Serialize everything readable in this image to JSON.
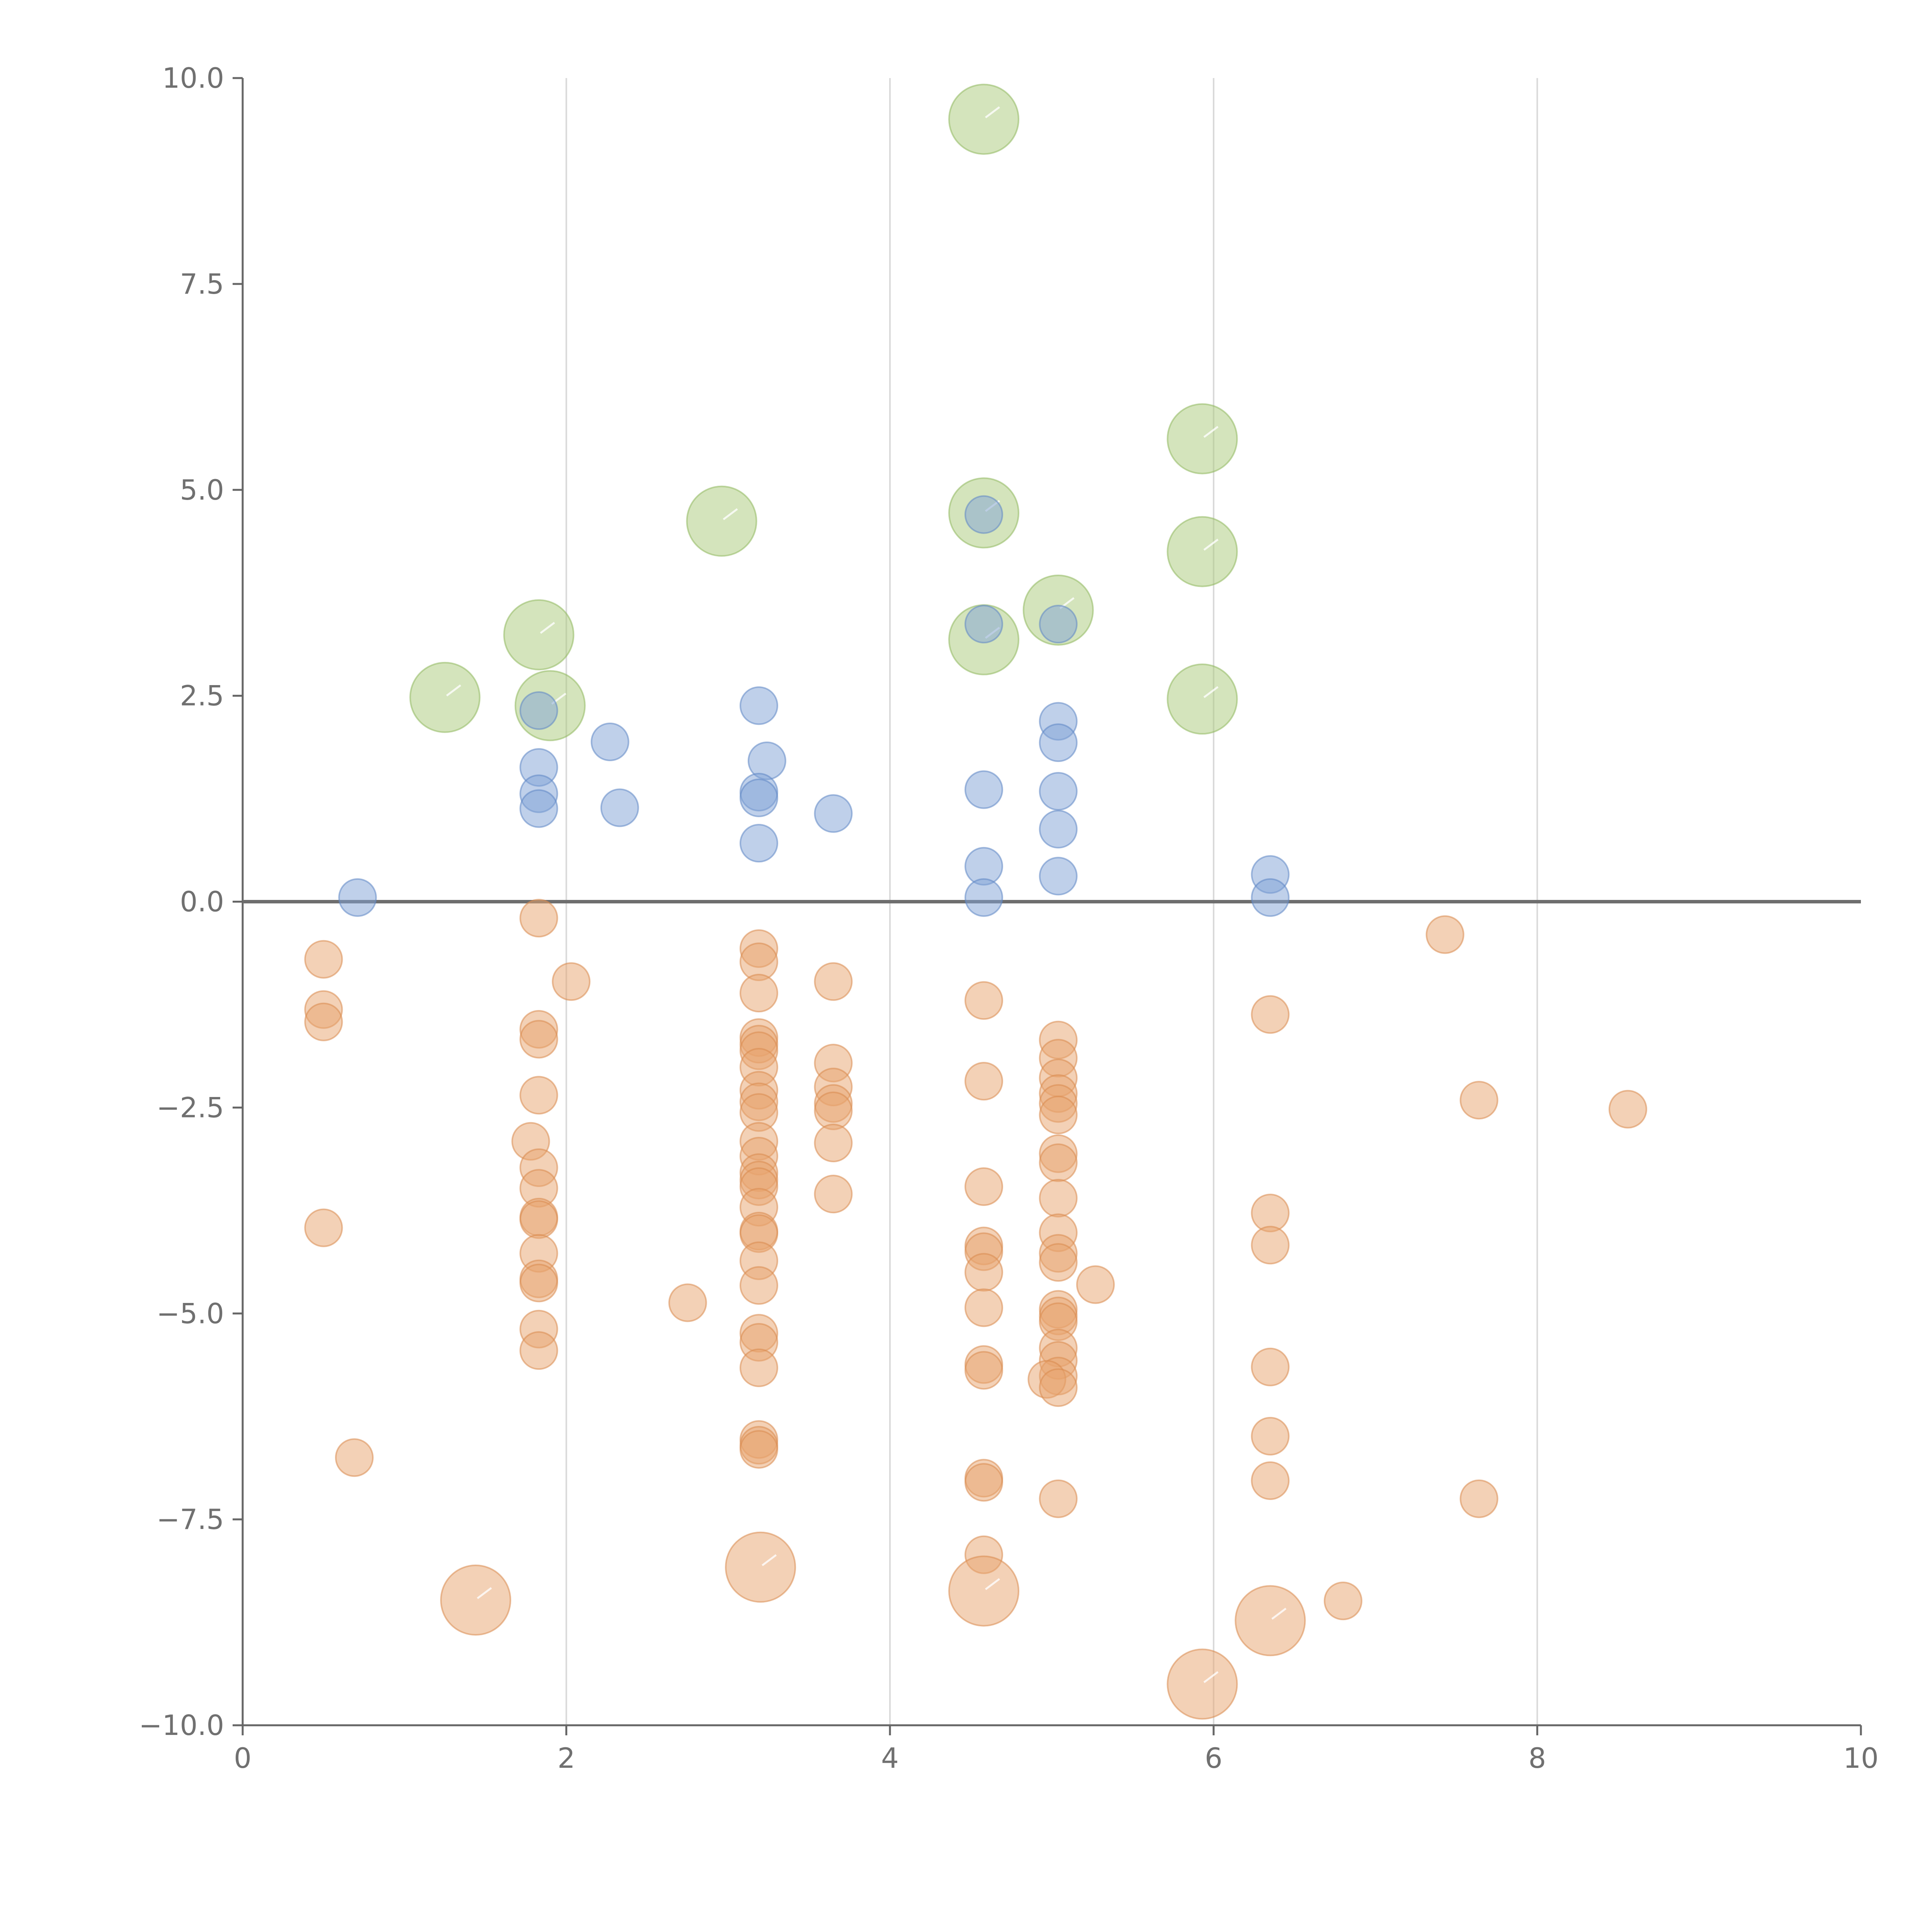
{
  "chart_data": {
    "type": "scatter",
    "title": "",
    "xlabel": "",
    "ylabel": "",
    "xlim": [
      0,
      10
    ],
    "ylim": [
      -10,
      10
    ],
    "grid": "vertical",
    "zero_line": true,
    "x_ticks": [
      "0",
      "2",
      "4",
      "6",
      "8",
      "10"
    ],
    "x_tick_values": [
      0,
      2,
      4,
      6,
      8,
      10
    ],
    "y_ticks": [
      "10.0",
      "7.5",
      "5.0",
      "2.5",
      "0.0",
      "−2.5",
      "−5.0",
      "−7.5",
      "−10.0"
    ],
    "y_tick_values": [
      10,
      7.5,
      5,
      2.5,
      0,
      -2.5,
      -5,
      -7.5,
      -10
    ],
    "series": [
      {
        "name": "green",
        "color": "#a9c97a",
        "stroke": "#8fb85e",
        "size": "large",
        "points": [
          [
            1.25,
            2.48
          ],
          [
            1.83,
            3.24
          ],
          [
            1.9,
            2.38
          ],
          [
            2.96,
            4.62
          ],
          [
            4.58,
            9.5
          ],
          [
            4.58,
            4.72
          ],
          [
            4.58,
            3.18
          ],
          [
            5.04,
            3.54
          ],
          [
            5.93,
            5.62
          ],
          [
            5.93,
            4.25
          ],
          [
            5.93,
            2.46
          ]
        ]
      },
      {
        "name": "blue",
        "color": "#7fa2d6",
        "stroke": "#5f87c4",
        "size": "small",
        "points": [
          [
            0.71,
            0.05
          ],
          [
            1.83,
            2.32
          ],
          [
            1.83,
            1.63
          ],
          [
            1.83,
            1.31
          ],
          [
            1.83,
            1.13
          ],
          [
            2.27,
            1.94
          ],
          [
            2.33,
            1.14
          ],
          [
            3.19,
            2.38
          ],
          [
            3.24,
            1.71
          ],
          [
            3.19,
            1.33
          ],
          [
            3.19,
            1.26
          ],
          [
            3.19,
            0.71
          ],
          [
            3.65,
            1.07
          ],
          [
            4.58,
            4.7
          ],
          [
            4.58,
            3.37
          ],
          [
            4.58,
            1.36
          ],
          [
            4.58,
            0.43
          ],
          [
            4.58,
            0.05
          ],
          [
            5.04,
            3.37
          ],
          [
            5.04,
            2.19
          ],
          [
            5.04,
            1.93
          ],
          [
            5.04,
            1.34
          ],
          [
            5.04,
            0.88
          ],
          [
            5.04,
            0.31
          ],
          [
            6.35,
            0.33
          ],
          [
            6.35,
            0.05
          ]
        ]
      },
      {
        "name": "orange",
        "color": "#e8a46e",
        "stroke": "#d98a4e",
        "size": "small",
        "points": [
          [
            0.5,
            -0.7
          ],
          [
            0.5,
            -1.31
          ],
          [
            0.5,
            -1.46
          ],
          [
            0.5,
            -3.96
          ],
          [
            0.69,
            -6.75
          ],
          [
            1.83,
            -0.2
          ],
          [
            1.83,
            -1.55
          ],
          [
            1.83,
            -1.67
          ],
          [
            1.83,
            -2.35
          ],
          [
            1.78,
            -2.91
          ],
          [
            1.83,
            -3.23
          ],
          [
            1.83,
            -3.48
          ],
          [
            1.83,
            -3.83
          ],
          [
            1.83,
            -3.86
          ],
          [
            1.83,
            -4.27
          ],
          [
            1.83,
            -4.58
          ],
          [
            1.83,
            -4.63
          ],
          [
            1.83,
            -5.19
          ],
          [
            1.83,
            -5.45
          ],
          [
            2.03,
            -0.97
          ],
          [
            2.75,
            -4.87
          ],
          [
            3.19,
            -0.57
          ],
          [
            3.19,
            -0.73
          ],
          [
            3.19,
            -1.11
          ],
          [
            3.19,
            -1.65
          ],
          [
            3.19,
            -1.73
          ],
          [
            3.19,
            -1.81
          ],
          [
            3.19,
            -2.01
          ],
          [
            3.19,
            -2.29
          ],
          [
            3.19,
            -2.43
          ],
          [
            3.19,
            -2.56
          ],
          [
            3.19,
            -2.91
          ],
          [
            3.19,
            -3.09
          ],
          [
            3.19,
            -3.29
          ],
          [
            3.19,
            -3.38
          ],
          [
            3.19,
            -3.46
          ],
          [
            3.19,
            -3.71
          ],
          [
            3.19,
            -4.0
          ],
          [
            3.19,
            -4.03
          ],
          [
            3.19,
            -4.36
          ],
          [
            3.19,
            -4.66
          ],
          [
            3.19,
            -5.24
          ],
          [
            3.19,
            -5.35
          ],
          [
            3.19,
            -5.66
          ],
          [
            3.19,
            -6.53
          ],
          [
            3.19,
            -6.6
          ],
          [
            3.19,
            -6.65
          ],
          [
            3.65,
            -0.97
          ],
          [
            3.65,
            -1.96
          ],
          [
            3.65,
            -2.25
          ],
          [
            3.65,
            -2.45
          ],
          [
            3.65,
            -2.54
          ],
          [
            3.65,
            -2.93
          ],
          [
            3.65,
            -3.55
          ],
          [
            4.58,
            -1.2
          ],
          [
            4.58,
            -2.18
          ],
          [
            4.58,
            -3.46
          ],
          [
            4.58,
            -4.18
          ],
          [
            4.58,
            -4.25
          ],
          [
            4.58,
            -4.5
          ],
          [
            4.58,
            -4.93
          ],
          [
            4.58,
            -5.62
          ],
          [
            4.58,
            -5.69
          ],
          [
            4.58,
            -7.0
          ],
          [
            4.58,
            -7.05
          ],
          [
            4.58,
            -7.93
          ],
          [
            5.04,
            -1.68
          ],
          [
            5.04,
            -1.9
          ],
          [
            5.04,
            -2.14
          ],
          [
            5.04,
            -2.33
          ],
          [
            5.04,
            -2.45
          ],
          [
            5.04,
            -2.59
          ],
          [
            5.04,
            -3.06
          ],
          [
            5.04,
            -3.17
          ],
          [
            5.04,
            -3.6
          ],
          [
            5.04,
            -4.02
          ],
          [
            5.04,
            -4.27
          ],
          [
            5.04,
            -4.38
          ],
          [
            5.04,
            -4.95
          ],
          [
            5.04,
            -5.03
          ],
          [
            5.04,
            -5.1
          ],
          [
            5.04,
            -5.42
          ],
          [
            5.04,
            -5.57
          ],
          [
            5.04,
            -5.76
          ],
          [
            4.97,
            -5.8
          ],
          [
            5.04,
            -5.9
          ],
          [
            5.04,
            -7.25
          ],
          [
            5.27,
            -4.65
          ],
          [
            6.35,
            -1.37
          ],
          [
            6.35,
            -3.78
          ],
          [
            6.35,
            -4.17
          ],
          [
            6.35,
            -5.65
          ],
          [
            6.35,
            -6.49
          ],
          [
            6.35,
            -7.03
          ],
          [
            6.8,
            -8.49
          ],
          [
            7.43,
            -0.4
          ],
          [
            7.64,
            -2.41
          ],
          [
            7.64,
            -7.25
          ],
          [
            8.56,
            -2.52
          ]
        ]
      },
      {
        "name": "orange-large",
        "color": "#e8a46e",
        "stroke": "#d98a4e",
        "size": "large",
        "points": [
          [
            1.44,
            -8.48
          ],
          [
            3.2,
            -8.08
          ],
          [
            4.58,
            -8.37
          ],
          [
            6.35,
            -8.73
          ],
          [
            5.93,
            -9.5
          ]
        ]
      }
    ]
  }
}
